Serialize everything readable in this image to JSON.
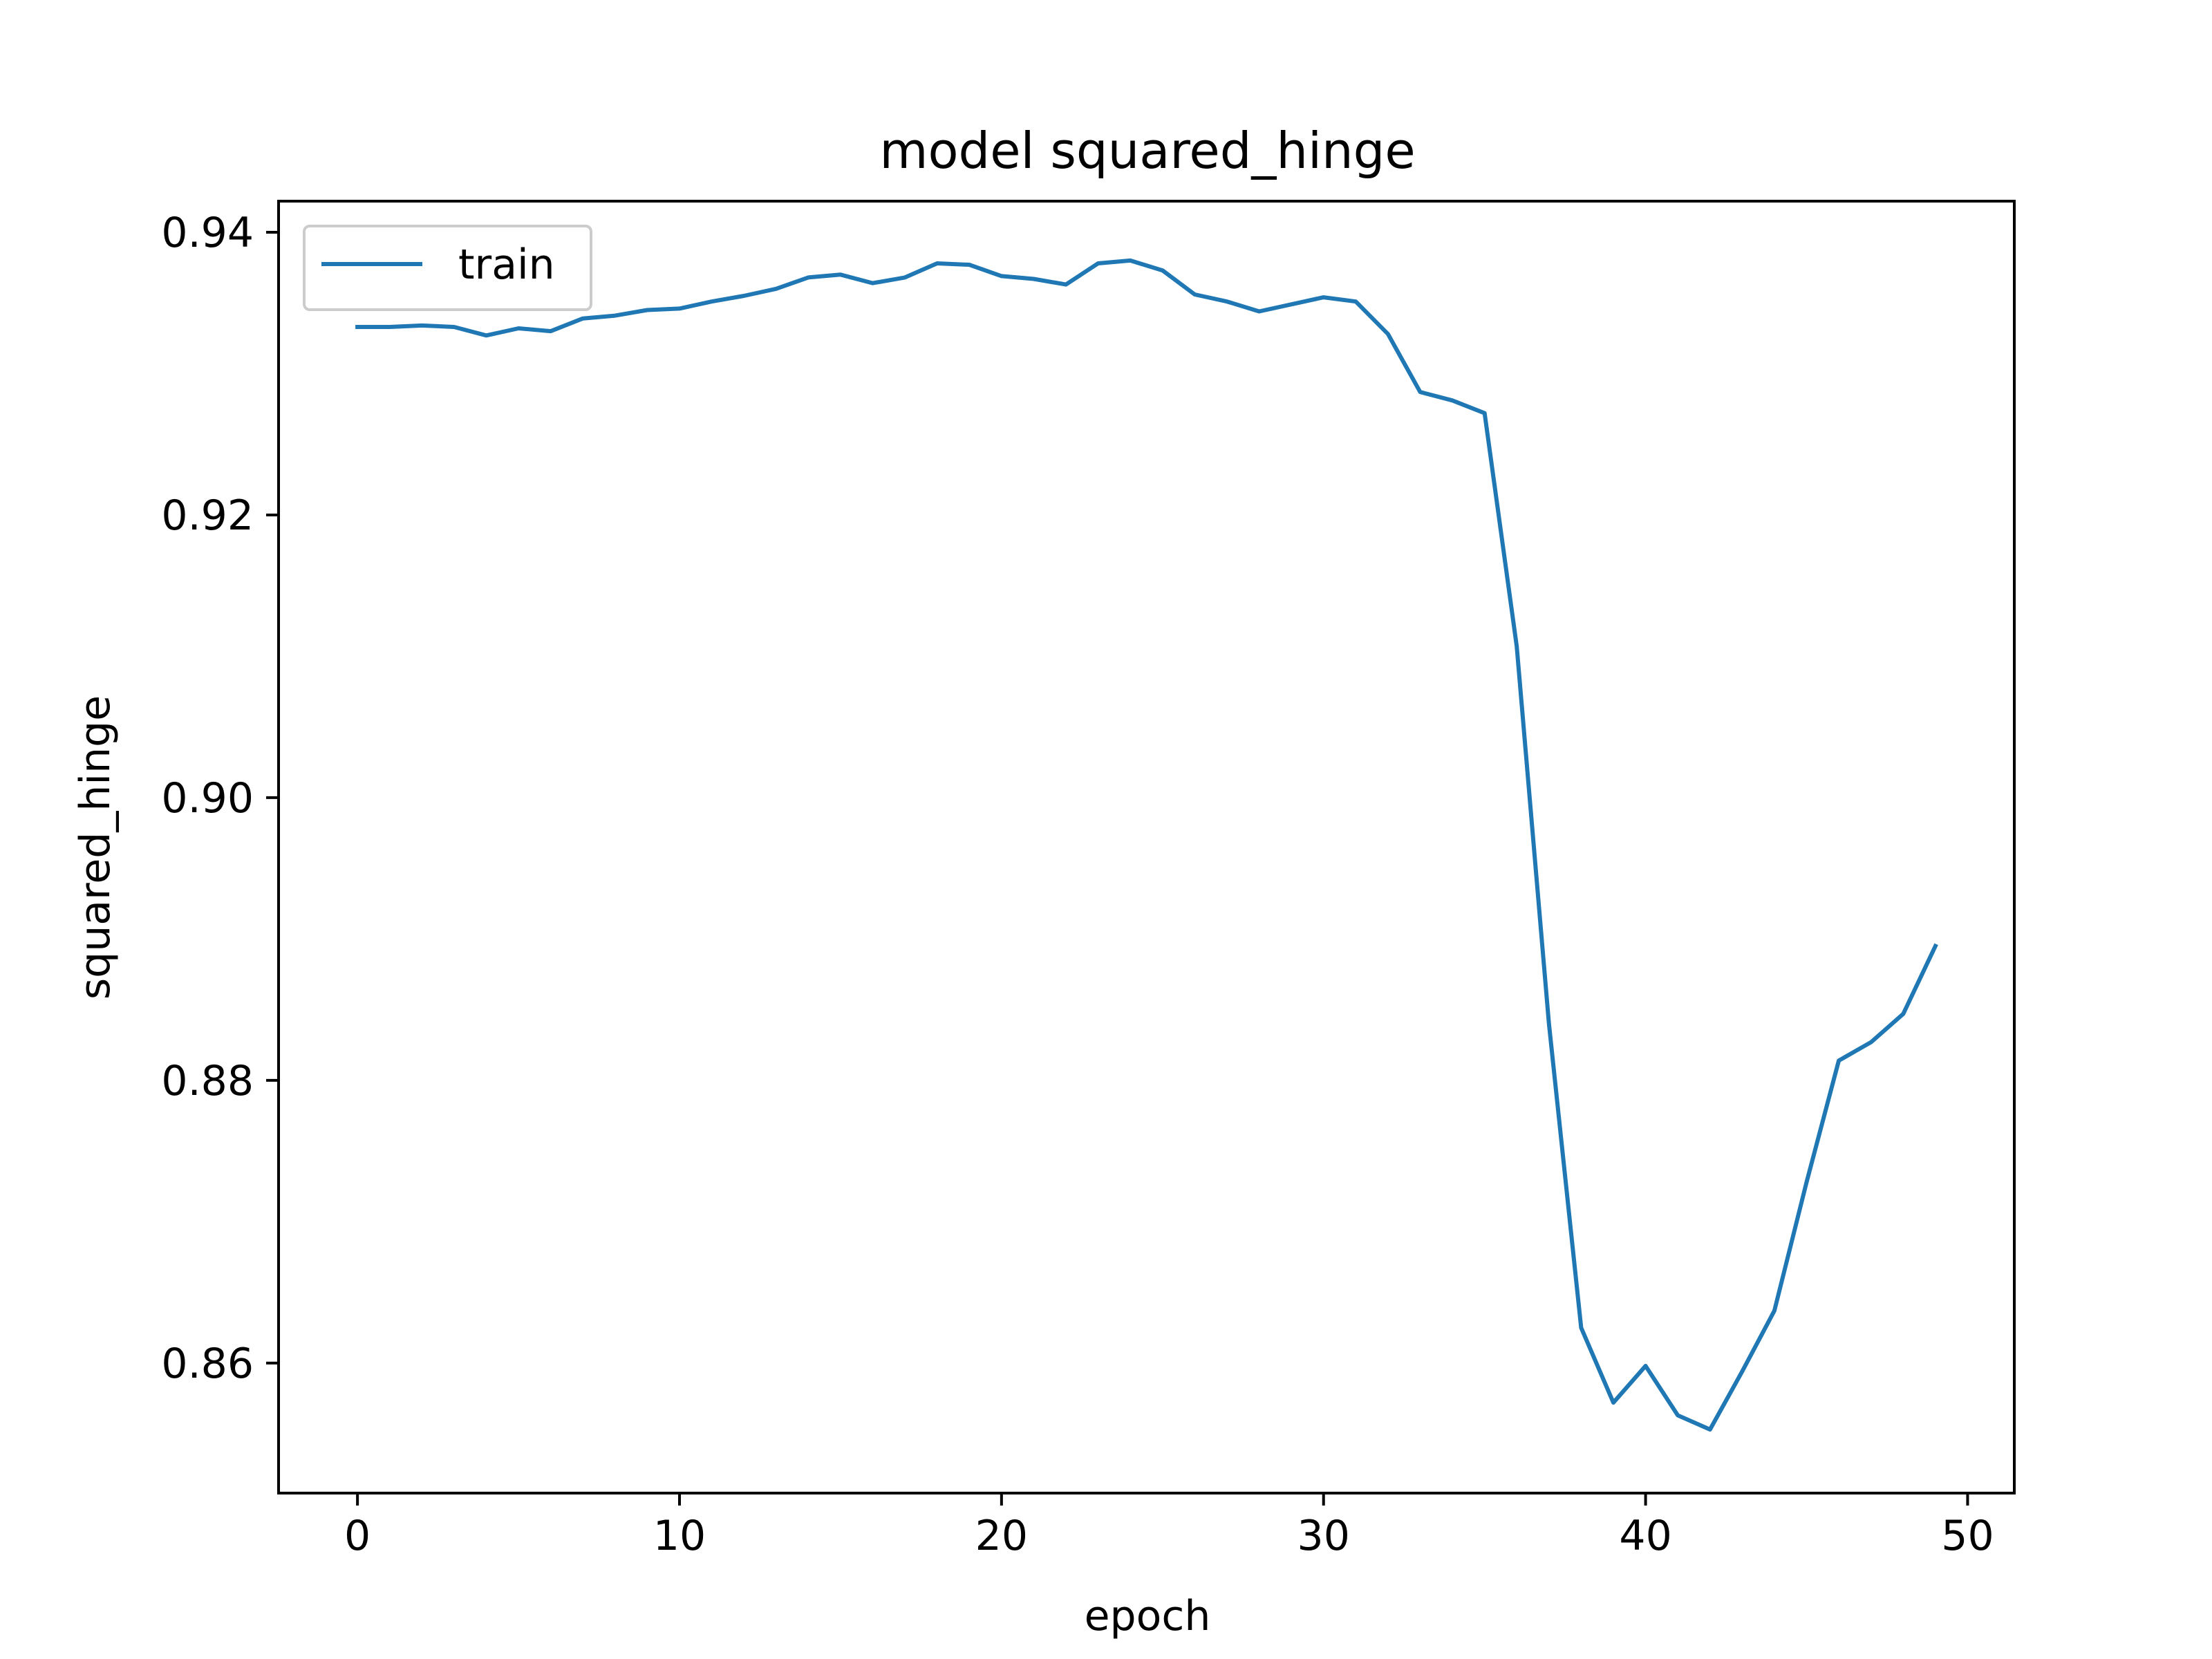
{
  "chart_data": {
    "type": "line",
    "title": "model squared_hinge",
    "xlabel": "epoch",
    "ylabel": "squared_hinge",
    "xlim": [
      -2.45,
      51.45
    ],
    "ylim": [
      0.8508,
      0.9422
    ],
    "xticks": [
      0,
      10,
      20,
      30,
      40,
      50
    ],
    "xtick_labels": [
      "0",
      "10",
      "20",
      "30",
      "40",
      "50"
    ],
    "yticks": [
      0.86,
      0.88,
      0.9,
      0.92,
      0.94
    ],
    "ytick_labels": [
      "0.86",
      "0.88",
      "0.90",
      "0.92",
      "0.94"
    ],
    "grid": false,
    "legend": {
      "position": "upper left",
      "entries": [
        "train"
      ]
    },
    "series": [
      {
        "name": "train",
        "color": "#1f77b4",
        "x": [
          0,
          1,
          2,
          3,
          4,
          5,
          6,
          7,
          8,
          9,
          10,
          11,
          12,
          13,
          14,
          15,
          16,
          17,
          18,
          19,
          20,
          21,
          22,
          23,
          24,
          25,
          26,
          27,
          28,
          29,
          30,
          31,
          32,
          33,
          34,
          35,
          36,
          37,
          38,
          39,
          40,
          41,
          42,
          43,
          44,
          45,
          46,
          47,
          48,
          49
        ],
        "values": [
          0.9333,
          0.9333,
          0.9334,
          0.9333,
          0.9327,
          0.9332,
          0.933,
          0.9339,
          0.9341,
          0.9345,
          0.9346,
          0.9351,
          0.9355,
          0.936,
          0.9368,
          0.937,
          0.9364,
          0.9368,
          0.9378,
          0.9377,
          0.9369,
          0.9367,
          0.9363,
          0.9378,
          0.938,
          0.9373,
          0.9356,
          0.9351,
          0.9344,
          0.9349,
          0.9354,
          0.9351,
          0.9328,
          0.9287,
          0.9281,
          0.9272,
          0.9107,
          0.884,
          0.8625,
          0.8572,
          0.8598,
          0.8563,
          0.8553,
          0.8594,
          0.8637,
          0.8728,
          0.8814,
          0.8827,
          0.8847,
          0.8895
        ]
      }
    ]
  }
}
